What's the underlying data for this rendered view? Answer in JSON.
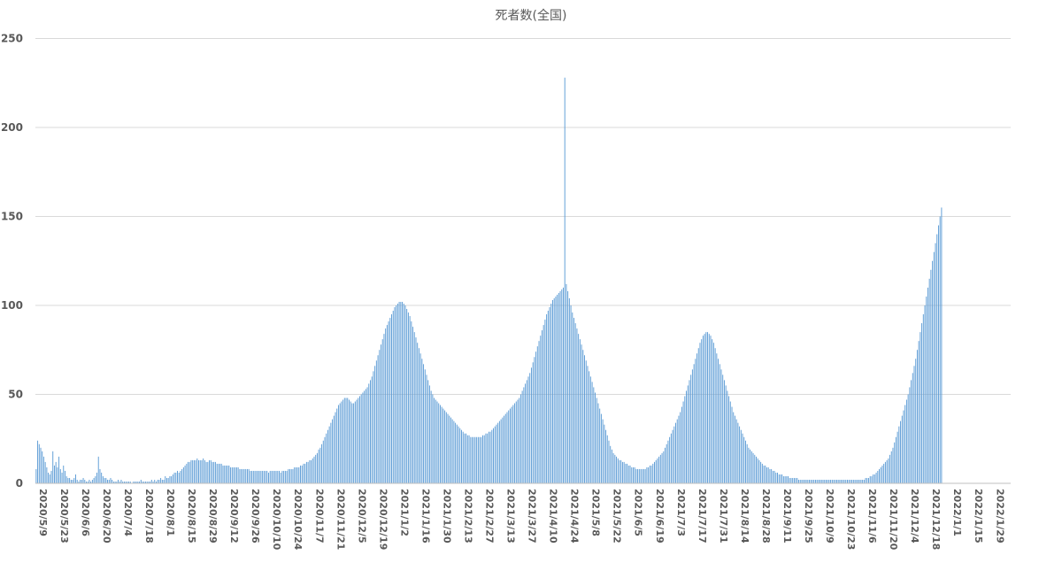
{
  "chart_data": {
    "type": "bar",
    "title": "死者数(全国)",
    "xlabel": "",
    "ylabel": "",
    "ylim": [
      0,
      250
    ],
    "yticks": [
      0,
      50,
      100,
      150,
      200,
      250
    ],
    "grid": true,
    "legend": "none",
    "bar_color": "#5b9bd5",
    "x_start": "2020-05-09",
    "x_end": "2022-02-09",
    "tick_labels": [
      "2020/5/9",
      "2020/5/23",
      "2020/6/6",
      "2020/6/20",
      "2020/7/4",
      "2020/7/18",
      "2020/8/1",
      "2020/8/15",
      "2020/8/29",
      "2020/9/12",
      "2020/9/26",
      "2020/10/10",
      "2020/10/24",
      "2020/11/7",
      "2020/11/21",
      "2020/12/5",
      "2020/12/19",
      "2021/1/2",
      "2021/1/16",
      "2021/1/30",
      "2021/2/13",
      "2021/2/27",
      "2021/3/13",
      "2021/3/27",
      "2021/4/10",
      "2021/4/24",
      "2021/5/8",
      "2021/5/22",
      "2021/6/5",
      "2021/6/19",
      "2021/7/3",
      "2021/7/17",
      "2021/7/31",
      "2021/8/14",
      "2021/8/28",
      "2021/9/11",
      "2021/9/25",
      "2021/10/9",
      "2021/10/23",
      "2021/11/6",
      "2021/11/20",
      "2021/12/4",
      "2021/12/18",
      "2022/1/1",
      "2022/1/15",
      "2022/1/29"
    ],
    "values": [
      8,
      24,
      22,
      20,
      18,
      15,
      12,
      9,
      6,
      5,
      7,
      18,
      10,
      12,
      9,
      15,
      8,
      6,
      10,
      7,
      4,
      3,
      3,
      2,
      2,
      3,
      5,
      2,
      1,
      2,
      2,
      3,
      2,
      1,
      1,
      2,
      1,
      2,
      3,
      4,
      6,
      15,
      8,
      6,
      4,
      3,
      3,
      2,
      2,
      3,
      2,
      1,
      1,
      1,
      2,
      1,
      2,
      1,
      1,
      1,
      1,
      1,
      1,
      0,
      1,
      1,
      1,
      1,
      1,
      2,
      1,
      1,
      1,
      1,
      1,
      1,
      2,
      1,
      2,
      1,
      2,
      2,
      3,
      2,
      2,
      4,
      3,
      3,
      4,
      4,
      5,
      6,
      6,
      7,
      6,
      7,
      8,
      9,
      10,
      11,
      12,
      12,
      13,
      13,
      13,
      13,
      14,
      13,
      13,
      13,
      14,
      13,
      12,
      12,
      13,
      13,
      12,
      12,
      12,
      11,
      11,
      11,
      11,
      10,
      10,
      10,
      10,
      10,
      9,
      9,
      9,
      9,
      9,
      9,
      8,
      8,
      8,
      8,
      8,
      8,
      8,
      7,
      7,
      7,
      7,
      7,
      7,
      7,
      7,
      7,
      7,
      7,
      7,
      6,
      7,
      7,
      7,
      7,
      7,
      7,
      7,
      6,
      7,
      7,
      7,
      7,
      8,
      8,
      8,
      8,
      9,
      9,
      9,
      9,
      10,
      10,
      11,
      11,
      12,
      12,
      13,
      13,
      14,
      15,
      16,
      17,
      19,
      20,
      22,
      24,
      26,
      28,
      30,
      32,
      34,
      36,
      38,
      40,
      42,
      44,
      45,
      46,
      47,
      48,
      48,
      48,
      47,
      46,
      45,
      45,
      46,
      47,
      48,
      49,
      50,
      51,
      52,
      53,
      54,
      56,
      58,
      60,
      63,
      66,
      69,
      72,
      75,
      78,
      81,
      84,
      87,
      89,
      91,
      93,
      95,
      97,
      99,
      100,
      101,
      102,
      102,
      102,
      101,
      100,
      98,
      96,
      94,
      91,
      88,
      85,
      82,
      79,
      76,
      73,
      70,
      67,
      64,
      61,
      58,
      55,
      52,
      50,
      48,
      47,
      46,
      45,
      44,
      43,
      42,
      41,
      40,
      39,
      38,
      37,
      36,
      35,
      34,
      33,
      32,
      31,
      30,
      29,
      28,
      28,
      27,
      27,
      26,
      26,
      26,
      26,
      26,
      26,
      26,
      26,
      27,
      27,
      28,
      28,
      29,
      29,
      30,
      31,
      32,
      33,
      34,
      35,
      36,
      37,
      38,
      39,
      40,
      41,
      42,
      43,
      44,
      45,
      46,
      47,
      48,
      50,
      52,
      54,
      56,
      58,
      60,
      62,
      65,
      68,
      71,
      74,
      77,
      80,
      83,
      86,
      89,
      92,
      95,
      97,
      99,
      101,
      103,
      104,
      105,
      106,
      107,
      108,
      109,
      110,
      228,
      112,
      108,
      104,
      100,
      96,
      93,
      90,
      87,
      84,
      81,
      78,
      75,
      72,
      69,
      66,
      63,
      60,
      57,
      54,
      51,
      48,
      45,
      42,
      39,
      36,
      33,
      30,
      27,
      24,
      21,
      19,
      17,
      16,
      15,
      14,
      13,
      13,
      12,
      12,
      11,
      11,
      10,
      10,
      9,
      9,
      9,
      8,
      8,
      8,
      8,
      8,
      8,
      8,
      9,
      9,
      10,
      10,
      11,
      12,
      13,
      14,
      15,
      16,
      17,
      18,
      20,
      22,
      24,
      26,
      28,
      30,
      32,
      34,
      36,
      38,
      40,
      43,
      46,
      49,
      52,
      55,
      58,
      61,
      64,
      67,
      70,
      73,
      76,
      79,
      81,
      83,
      84,
      85,
      85,
      84,
      83,
      81,
      79,
      76,
      73,
      70,
      67,
      64,
      61,
      58,
      55,
      52,
      49,
      46,
      43,
      40,
      38,
      36,
      34,
      32,
      30,
      28,
      26,
      24,
      22,
      20,
      19,
      18,
      17,
      16,
      15,
      14,
      13,
      12,
      11,
      10,
      10,
      9,
      9,
      8,
      8,
      7,
      7,
      6,
      6,
      5,
      5,
      5,
      4,
      4,
      4,
      4,
      3,
      3,
      3,
      3,
      3,
      3,
      2,
      2,
      2,
      2,
      2,
      2,
      2,
      2,
      2,
      2,
      2,
      2,
      2,
      2,
      2,
      2,
      2,
      2,
      2,
      2,
      2,
      2,
      2,
      2,
      2,
      2,
      2,
      2,
      2,
      2,
      2,
      2,
      2,
      2,
      2,
      2,
      2,
      2,
      2,
      2,
      2,
      2,
      2,
      2,
      3,
      3,
      3,
      4,
      4,
      5,
      5,
      6,
      7,
      8,
      9,
      10,
      11,
      12,
      13,
      14,
      16,
      18,
      20,
      23,
      26,
      29,
      32,
      35,
      38,
      41,
      44,
      47,
      50,
      54,
      58,
      62,
      66,
      70,
      75,
      80,
      85,
      90,
      95,
      100,
      105,
      110,
      115,
      120,
      125,
      130,
      135,
      140,
      145,
      150,
      155
    ]
  }
}
